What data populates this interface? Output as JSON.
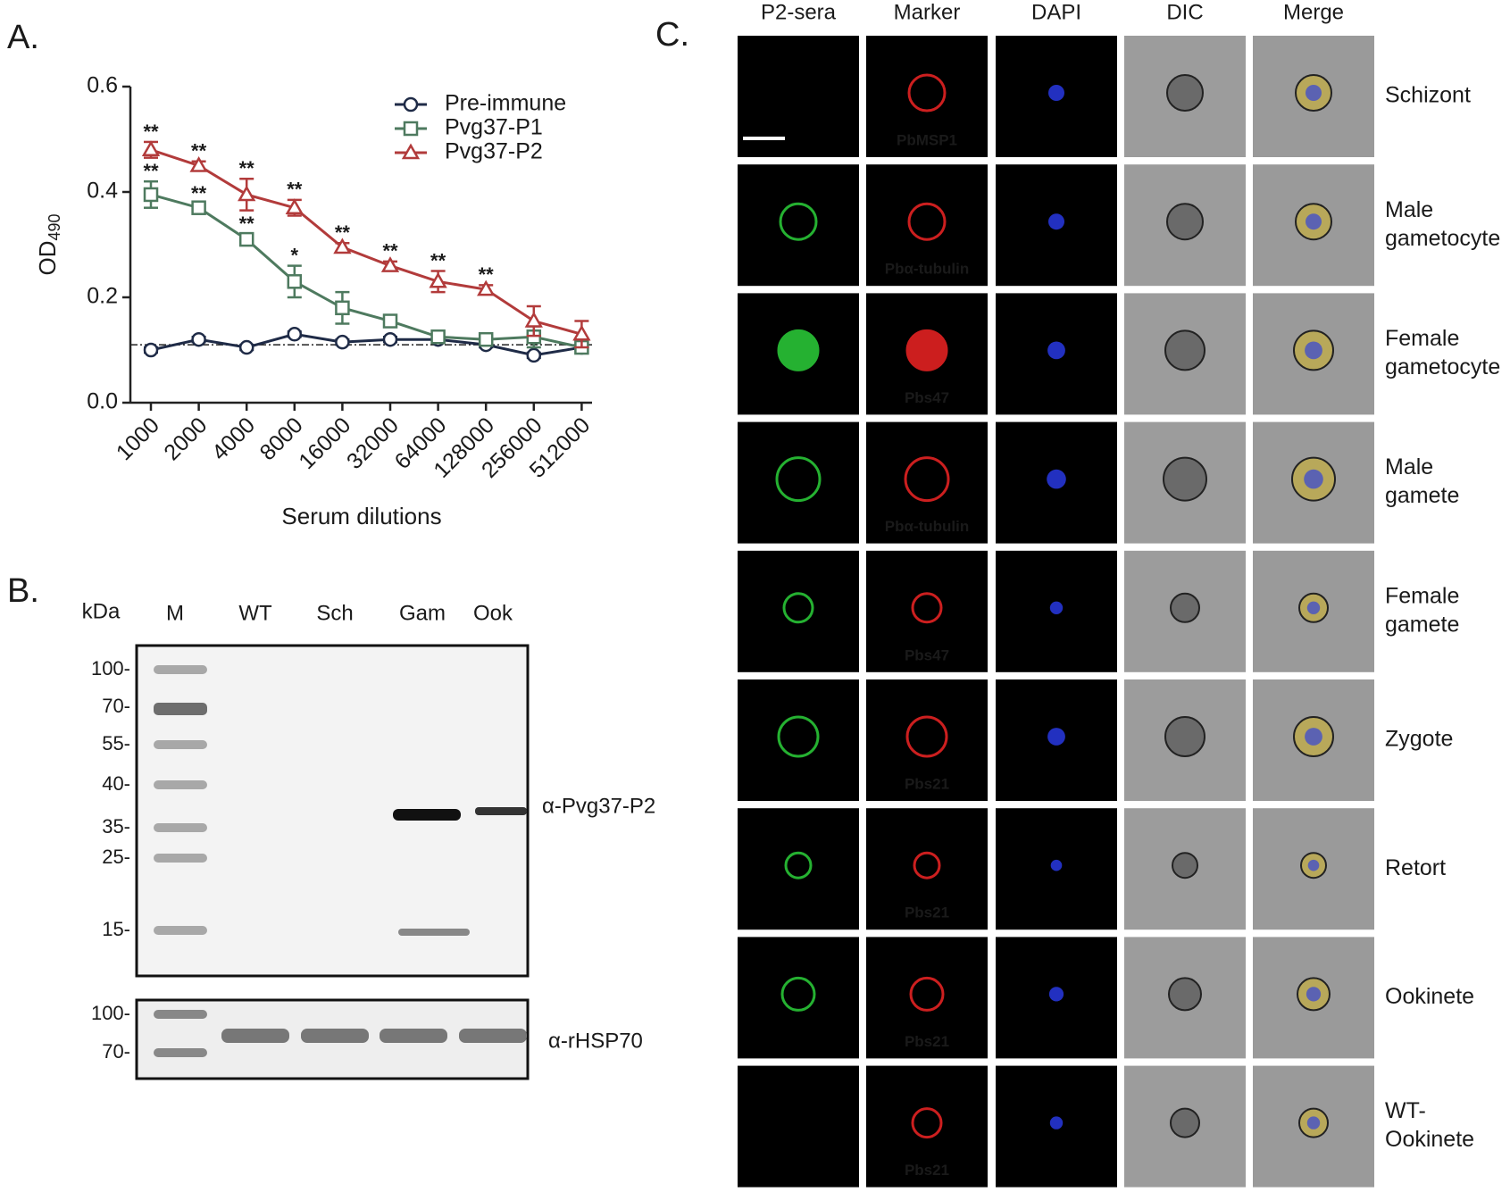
{
  "panel_labels": [
    "A.",
    "B.",
    "C."
  ],
  "chart_data": {
    "type": "line",
    "categories": [
      "1000",
      "2000",
      "4000",
      "8000",
      "16000",
      "32000",
      "64000",
      "128000",
      "256000",
      "512000"
    ],
    "x_label": "Serum dilutions",
    "y_label": "OD",
    "y_label_subscript": "490",
    "ylim": [
      0,
      0.6
    ],
    "yticks": [
      {
        "value": 0,
        "label": "0.0"
      },
      0.2,
      0.4,
      0.6
    ],
    "cutoff": 0.11,
    "legend": "upper right",
    "series": [
      {
        "name": "Pre-immune",
        "color": "#1f2b47",
        "marker": "circle",
        "values": [
          0.1,
          0.12,
          0.105,
          0.13,
          0.115,
          0.12,
          0.12,
          0.11,
          0.09,
          0.105
        ],
        "errors": [
          0.005,
          0.005,
          0.005,
          0.005,
          0.005,
          0.005,
          0.005,
          0.005,
          0.005,
          0.005
        ]
      },
      {
        "name": "Pvg37-P1",
        "color": "#4e7a5f",
        "marker": "square",
        "values": [
          0.395,
          0.37,
          0.31,
          0.23,
          0.18,
          0.155,
          0.125,
          0.12,
          0.125,
          0.105
        ],
        "errors": [
          0.025,
          0.008,
          0.01,
          0.03,
          0.03,
          0.01,
          0.008,
          0.005,
          0.02,
          0.01
        ],
        "annotations": [
          "**",
          "**",
          "**",
          "*",
          null,
          null,
          null,
          null,
          null,
          null
        ]
      },
      {
        "name": "Pvg37-P2",
        "color": "#b23b3b",
        "marker": "triangle",
        "values": [
          0.48,
          0.45,
          0.395,
          0.37,
          0.295,
          0.26,
          0.23,
          0.215,
          0.155,
          0.13
        ],
        "errors": [
          0.015,
          0.008,
          0.03,
          0.015,
          0.008,
          0.008,
          0.02,
          0.008,
          0.028,
          0.025
        ],
        "annotations": [
          "**",
          "**",
          "**",
          "**",
          "**",
          "**",
          "**",
          "**",
          null,
          null
        ]
      }
    ]
  },
  "blot": {
    "unit": "kDa",
    "lanes": [
      "M",
      "WT",
      "Sch",
      "Gam",
      "Ook"
    ],
    "upper": {
      "markers": [
        "100-",
        "70-",
        "55-",
        "40-",
        "35-",
        "25-",
        "15-"
      ],
      "antibody": "α-Pvg37-P2"
    },
    "lower": {
      "markers": [
        "100-",
        "70-"
      ],
      "antibody": "α-rHSP70"
    }
  },
  "microscopy": {
    "columns": [
      {
        "label": "P2-sera",
        "color": "#2ea03a"
      },
      {
        "label": "Marker",
        "color": "#e02020"
      },
      {
        "label": "DAPI",
        "color": "#2850c0"
      },
      {
        "label": "DIC",
        "color": "#a8a8a8"
      },
      {
        "label": "Merge",
        "color": "#111111"
      }
    ],
    "rows": [
      {
        "stage": [
          "Schizont"
        ],
        "marker": "PbMSP1"
      },
      {
        "stage": [
          "Male",
          "gametocyte"
        ],
        "marker": "Pbα-tubulin"
      },
      {
        "stage": [
          "Female",
          "gametocyte"
        ],
        "marker": "Pbs47"
      },
      {
        "stage": [
          "Male",
          "gamete"
        ],
        "marker": "Pbα-tubulin"
      },
      {
        "stage": [
          "Female",
          "gamete"
        ],
        "marker": "Pbs47"
      },
      {
        "stage": [
          "Zygote"
        ],
        "marker": "Pbs21"
      },
      {
        "stage": [
          "Retort"
        ],
        "marker": "Pbs21"
      },
      {
        "stage": [
          "Ookinete"
        ],
        "marker": "Pbs21"
      },
      {
        "stage": [
          "WT-",
          "Ookinete"
        ],
        "marker": "Pbs21"
      }
    ]
  }
}
